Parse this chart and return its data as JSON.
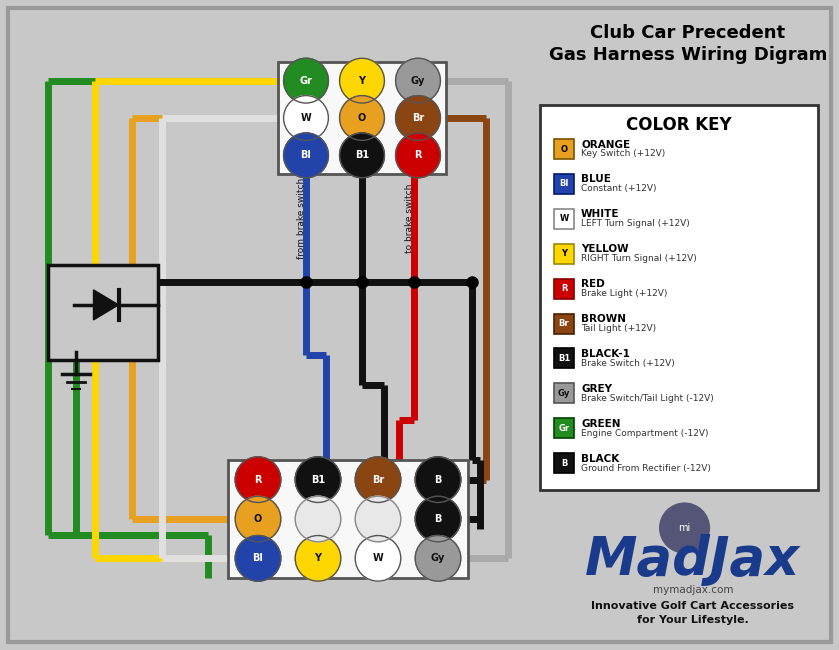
{
  "title_line1": "Club Car Precedent",
  "title_line2": "Gas Harness Wiring Digram",
  "bg_color": "#c8c8c8",
  "color_key": [
    {
      "label": "O",
      "name": "ORANGE",
      "desc": "Key Switch (+12V)",
      "bg": "#E8A020",
      "fg": "#000000",
      "border": "#7a5500"
    },
    {
      "label": "Bl",
      "name": "BLUE",
      "desc": "Constant (+12V)",
      "bg": "#2244AA",
      "fg": "#ffffff",
      "border": "#001a6e"
    },
    {
      "label": "W",
      "name": "WHITE",
      "desc": "LEFT Turn Signal (+12V)",
      "bg": "#ffffff",
      "fg": "#000000",
      "border": "#888888"
    },
    {
      "label": "Y",
      "name": "YELLOW",
      "desc": "RIGHT Turn Signal (+12V)",
      "bg": "#FFD700",
      "fg": "#000000",
      "border": "#998800"
    },
    {
      "label": "R",
      "name": "RED",
      "desc": "Brake Light (+12V)",
      "bg": "#CC0000",
      "fg": "#ffffff",
      "border": "#880000"
    },
    {
      "label": "Br",
      "name": "BROWN",
      "desc": "Tail Light (+12V)",
      "bg": "#8B4513",
      "fg": "#ffffff",
      "border": "#4a2000"
    },
    {
      "label": "B1",
      "name": "BLACK-1",
      "desc": "Brake Switch (+12V)",
      "bg": "#111111",
      "fg": "#ffffff",
      "border": "#000000"
    },
    {
      "label": "Gy",
      "name": "GREY",
      "desc": "Brake Switch/Tail Light (-12V)",
      "bg": "#999999",
      "fg": "#111111",
      "border": "#555555"
    },
    {
      "label": "Gr",
      "name": "GREEN",
      "desc": "Engine Compartment (-12V)",
      "bg": "#228B22",
      "fg": "#ffffff",
      "border": "#004400"
    },
    {
      "label": "B",
      "name": "BLACK",
      "desc": "Ground From Rectifier (-12V)",
      "bg": "#111111",
      "fg": "#ffffff",
      "border": "#000000"
    }
  ],
  "wire": {
    "green": "#228B22",
    "yellow": "#FFD700",
    "orange": "#E8A020",
    "white": "#e0e0e0",
    "blue": "#2244AA",
    "red": "#CC0000",
    "black": "#111111",
    "brown": "#8B4513",
    "grey": "#aaaaaa"
  },
  "lw": 5
}
